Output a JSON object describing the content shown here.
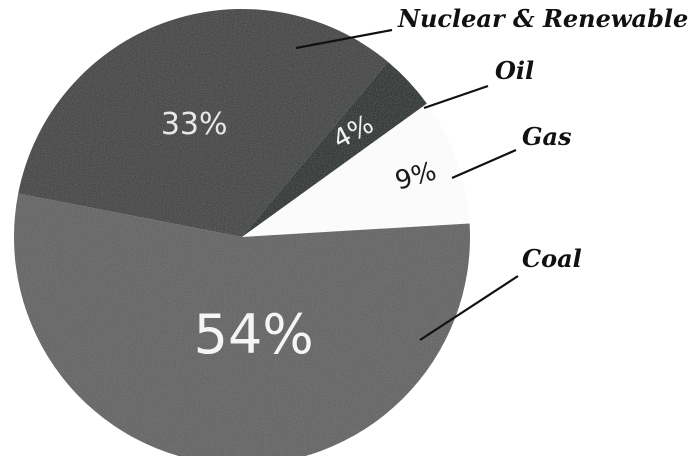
{
  "chart_data": {
    "type": "pie",
    "slices": [
      {
        "name": "Nuclear & Renewable",
        "value": 33,
        "label": "33%",
        "color": "#3a3d3a"
      },
      {
        "name": "Oil",
        "value": 4,
        "label": "4%",
        "color": "#1f2520"
      },
      {
        "name": "Gas",
        "value": 9,
        "label": "9%",
        "color": "#fbfbfb"
      },
      {
        "name": "Coal",
        "value": 54,
        "label": "54%",
        "color": "#606060"
      }
    ]
  }
}
